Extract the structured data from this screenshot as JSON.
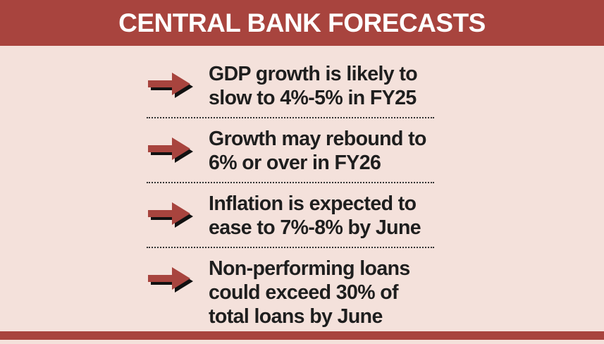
{
  "header": {
    "title": "CENTRAL BANK FORECASTS"
  },
  "colors": {
    "accent": "#a8443e",
    "background": "#f4e1db",
    "text": "#1e1e1e"
  },
  "items": [
    {
      "icon": "arrow-right-icon",
      "text": "GDP growth is likely to slow to 4%-5% in FY25"
    },
    {
      "icon": "arrow-right-icon",
      "text": "Growth may rebound to 6% or over in FY26"
    },
    {
      "icon": "arrow-right-icon",
      "text": "Inflation is expected to ease to 7%-8% by June"
    },
    {
      "icon": "arrow-right-icon",
      "text": "Non-performing loans could exceed 30% of total loans by June"
    }
  ]
}
